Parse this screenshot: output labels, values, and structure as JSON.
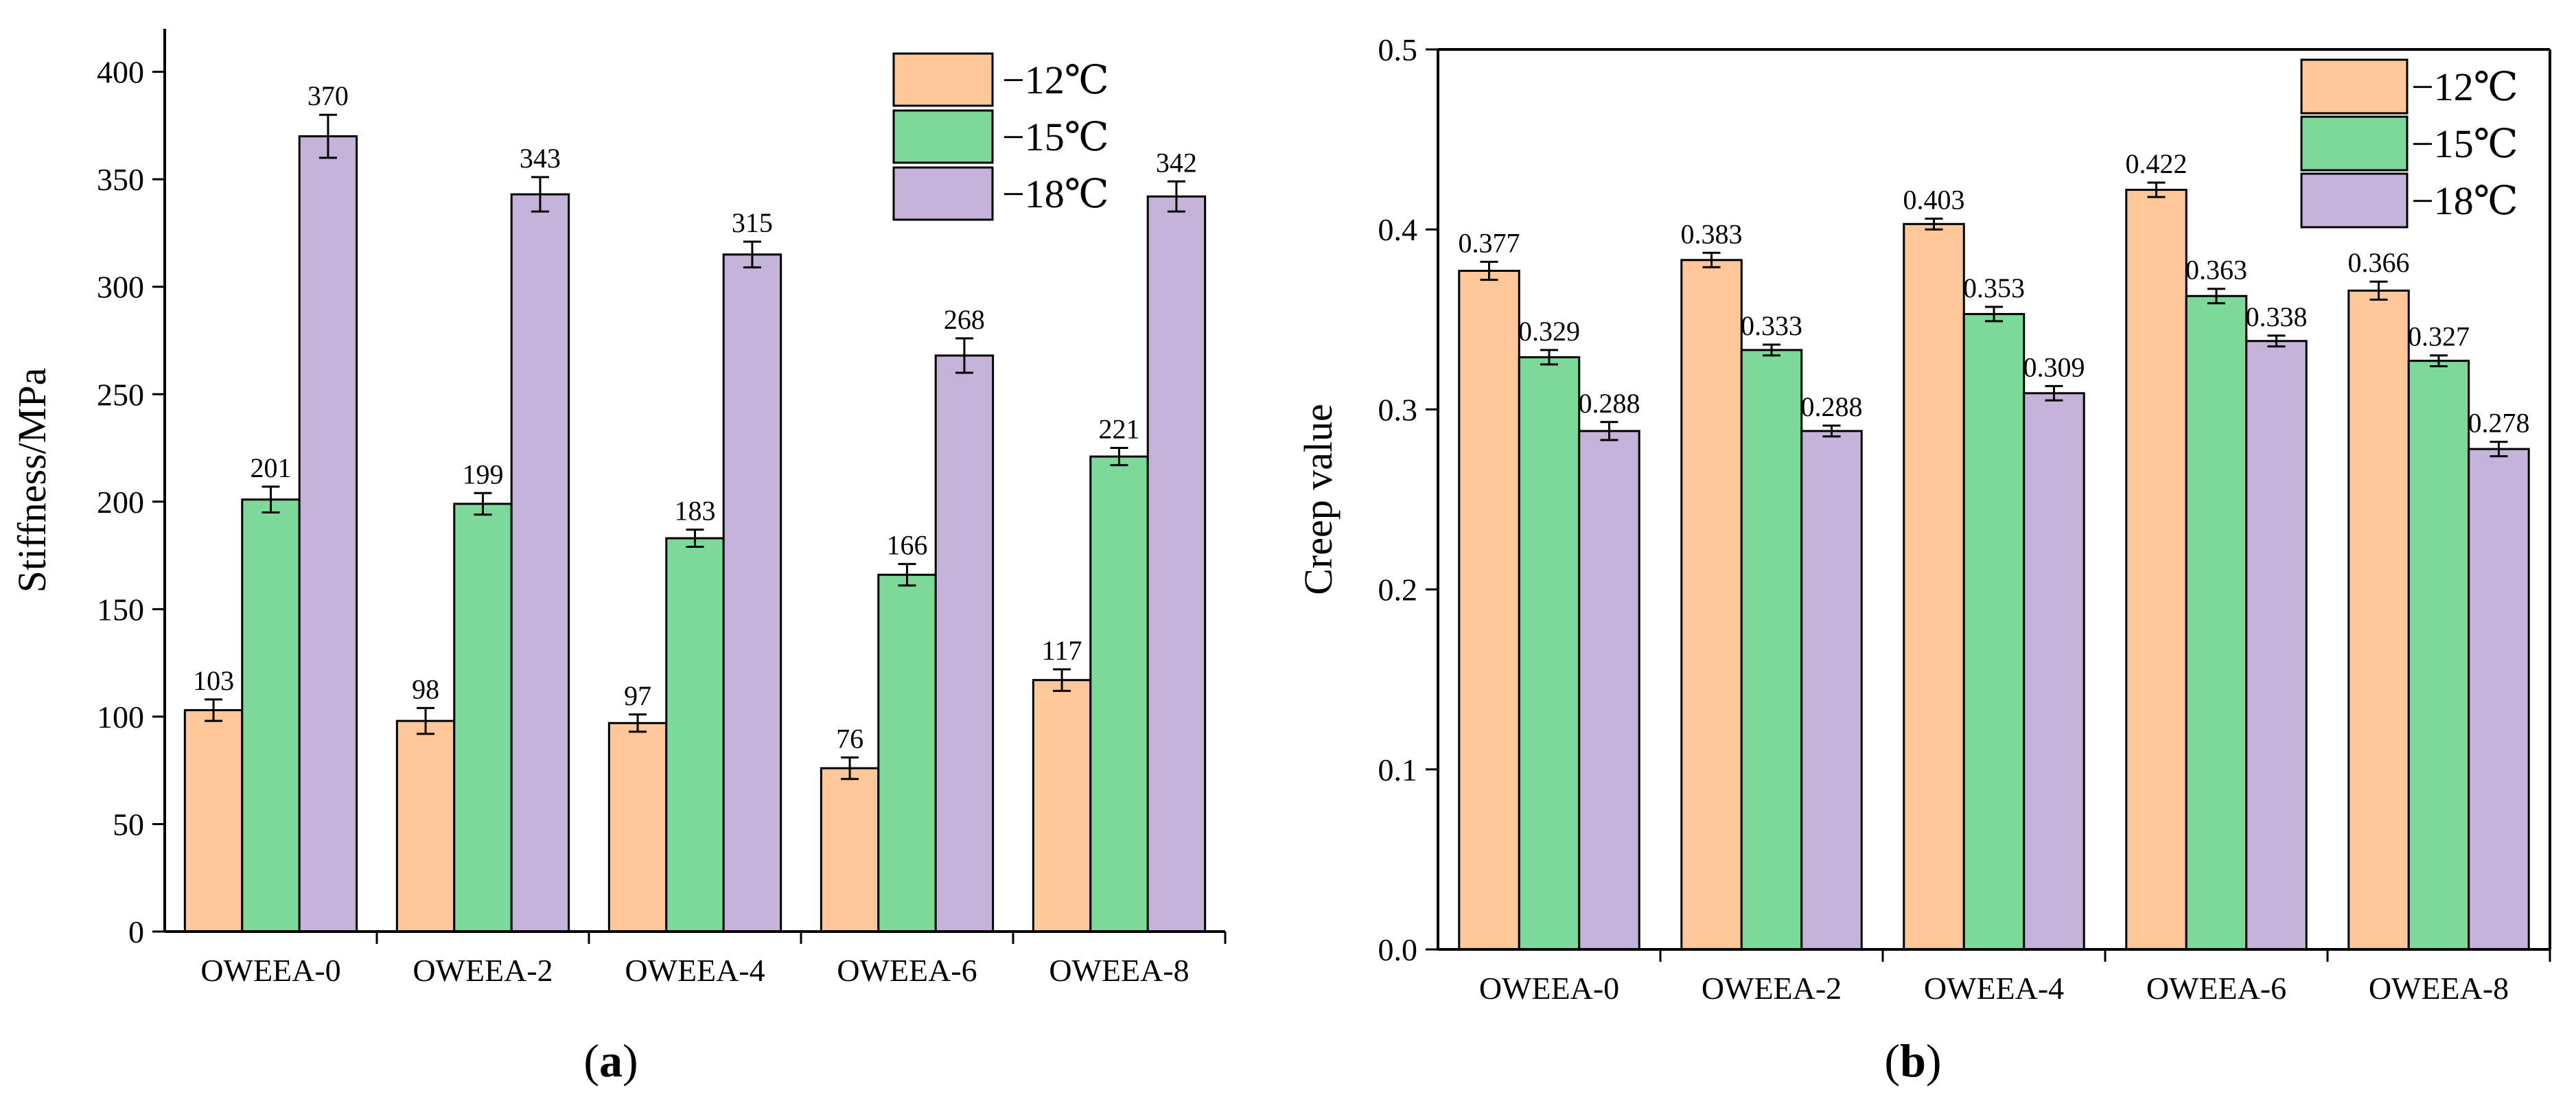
{
  "colors": {
    "series_fill": [
      "#FDC799",
      "#7DD99A",
      "#C6B3D9"
    ],
    "stroke": "#000000",
    "background": "#FFFFFF"
  },
  "chart_data": [
    {
      "type": "bar",
      "panel_label": "a",
      "title": "",
      "xlabel": "",
      "ylabel": "Stiffness/MPa",
      "ylim": [
        0,
        420
      ],
      "yticks": [
        0,
        50,
        100,
        150,
        200,
        250,
        300,
        350,
        400
      ],
      "categories": [
        "OWEEA-0",
        "OWEEA-2",
        "OWEEA-4",
        "OWEEA-6",
        "OWEEA-8"
      ],
      "series": [
        {
          "name": "−12℃",
          "values": [
            103,
            98,
            97,
            76,
            117
          ],
          "errors": [
            5,
            6,
            4,
            5,
            5
          ],
          "labels": [
            "103",
            "98",
            "97",
            "76",
            "117"
          ]
        },
        {
          "name": "−15℃",
          "values": [
            201,
            199,
            183,
            166,
            221
          ],
          "errors": [
            6,
            5,
            4,
            5,
            4
          ],
          "labels": [
            "201",
            "199",
            "183",
            "166",
            "221"
          ]
        },
        {
          "name": "−18℃",
          "values": [
            370,
            343,
            315,
            268,
            342
          ],
          "errors": [
            10,
            8,
            6,
            8,
            7
          ],
          "labels": [
            "370",
            "343",
            "315",
            "268",
            "342"
          ]
        }
      ],
      "legend_position": "top-right",
      "grid": false
    },
    {
      "type": "bar",
      "panel_label": "b",
      "title": "",
      "xlabel": "",
      "ylabel": "Creep value",
      "ylim": [
        0,
        0.5
      ],
      "yticks": [
        0,
        0.1,
        0.2,
        0.3,
        0.4,
        0.5
      ],
      "ytick_labels": [
        "0.0",
        "0.1",
        "0.2",
        "0.3",
        "0.4",
        "0.5"
      ],
      "categories": [
        "OWEEA-0",
        "OWEEA-2",
        "OWEEA-4",
        "OWEEA-6",
        "OWEEA-8"
      ],
      "series": [
        {
          "name": "−12℃",
          "values": [
            0.377,
            0.383,
            0.403,
            0.422,
            0.366
          ],
          "errors": [
            0.005,
            0.004,
            0.003,
            0.004,
            0.005
          ],
          "labels": [
            "0.377",
            "0.383",
            "0.403",
            "0.422",
            "0.366"
          ]
        },
        {
          "name": "−15℃",
          "values": [
            0.329,
            0.333,
            0.353,
            0.363,
            0.327
          ],
          "errors": [
            0.004,
            0.003,
            0.004,
            0.004,
            0.003
          ],
          "labels": [
            "0.329",
            "0.333",
            "0.353",
            "0.363",
            "0.327"
          ]
        },
        {
          "name": "−18℃",
          "values": [
            0.288,
            0.288,
            0.309,
            0.338,
            0.278
          ],
          "errors": [
            0.005,
            0.003,
            0.004,
            0.003,
            0.004
          ],
          "labels": [
            "0.288",
            "0.288",
            "0.309",
            "0.338",
            "0.278"
          ]
        }
      ],
      "legend_position": "top-right",
      "grid": false
    }
  ]
}
